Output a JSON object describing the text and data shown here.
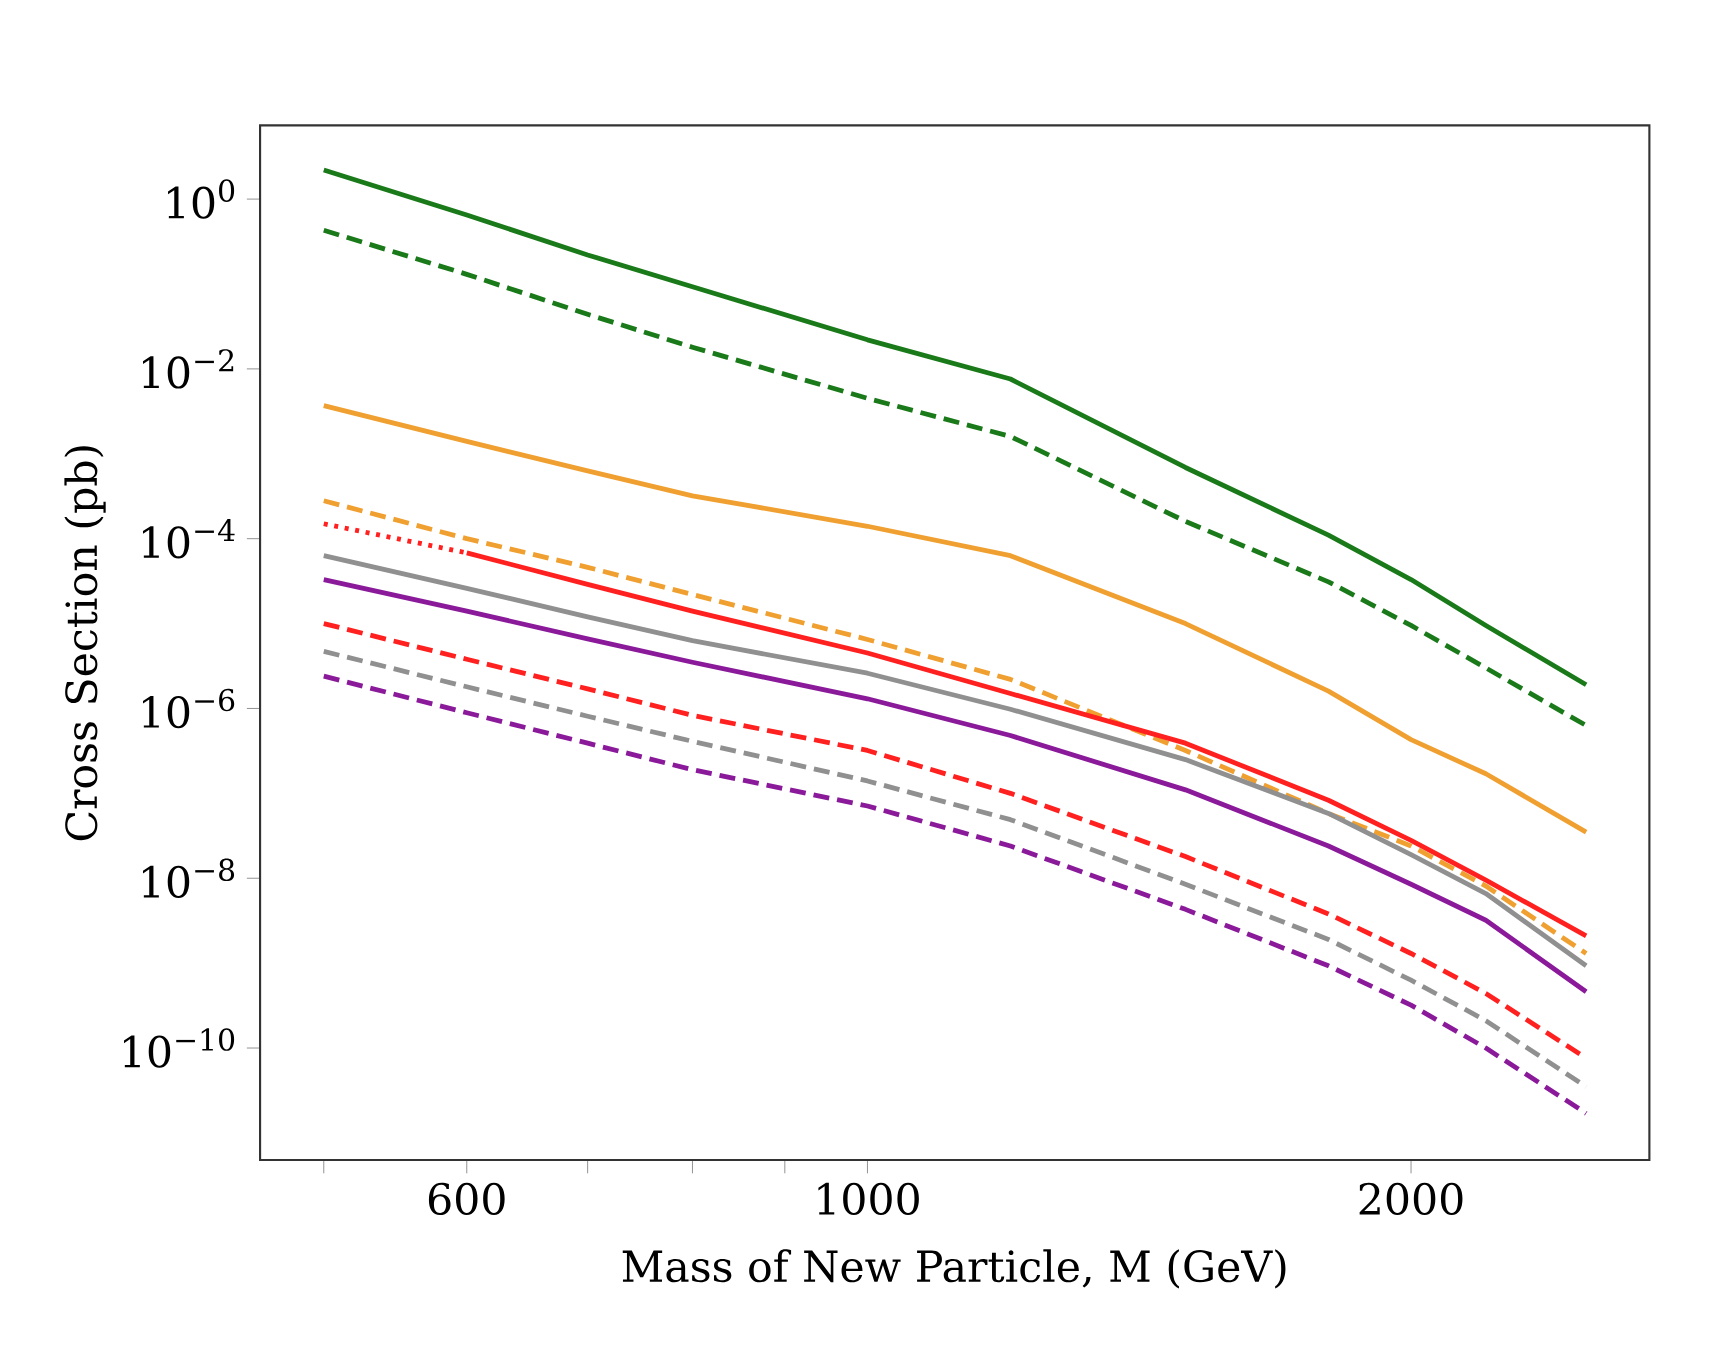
{
  "chart_data": {
    "type": "line",
    "xlabel": "Mass of New Particle, M (GeV)",
    "ylabel": "Cross Section (pb)",
    "log": "xy",
    "grid": false,
    "marker": "none",
    "x": [
      500,
      600,
      700,
      800,
      1000,
      1200,
      1500,
      1800,
      2000,
      2200,
      2500
    ],
    "xlim": [
      461,
      2710
    ],
    "ylim": [
      4.8e-12,
      7.4
    ],
    "xticks": [
      {
        "value": 500,
        "label": null
      },
      600,
      {
        "value": 700,
        "label": null
      },
      {
        "value": 800,
        "label": null
      },
      {
        "value": 900,
        "label": null
      },
      1000,
      2000
    ],
    "yticks": [
      {
        "value": 1,
        "label": "10$^{0}$"
      },
      {
        "value": 0.01,
        "label": "10$^{−2}$"
      },
      {
        "value": 0.0001,
        "label": "10$^{−4}$"
      },
      {
        "value": 1e-06,
        "label": "10$^{−6}$"
      },
      {
        "value": 1e-08,
        "label": "10$^{−8}$"
      },
      {
        "value": 1e-10,
        "label": "10$^{−10}$"
      }
    ],
    "series": [
      {
        "color": "#1a7a1a",
        "line_style": "solid",
        "values": [
          2.2,
          0.65,
          0.22,
          0.093,
          0.022,
          0.0076,
          0.00069,
          0.00011,
          3.3e-05,
          9.5e-06,
          1.9e-06
        ]
      },
      {
        "color": "#1a7a1a",
        "line_style": "dashed",
        "values": [
          0.43,
          0.13,
          0.044,
          0.018,
          0.0045,
          0.0016,
          0.00016,
          3.1e-05,
          9.5e-06,
          3e-06,
          6.3e-07
        ]
      },
      {
        "color": "#f0a030",
        "line_style": "solid",
        "values": [
          0.0037,
          0.0014,
          0.00063,
          0.00032,
          0.00014,
          6.3e-05,
          1e-05,
          1.6e-06,
          4.3e-07,
          1.7e-07,
          3.5e-08
        ]
      },
      {
        "color": "#f0a030",
        "line_style": "dashed",
        "values": [
          0.00028,
          0.0001,
          4.6e-05,
          2.2e-05,
          6.5e-06,
          2.2e-06,
          3.2e-07,
          5.8e-08,
          2.4e-08,
          8.1e-09,
          1.3e-09
        ]
      },
      {
        "color": "#ff2020",
        "line_style": "dotted",
        "x": [
          500,
          600
        ],
        "values": [
          0.00015,
          6.8e-05
        ]
      },
      {
        "color": "#ff2020",
        "line_style": "solid",
        "x": [
          600,
          700,
          800,
          1000,
          1200,
          1500,
          1800,
          2000,
          2200,
          2500
        ],
        "values": [
          6.8e-05,
          2.9e-05,
          1.4e-05,
          4.5e-06,
          1.5e-06,
          3.9e-07,
          8.3e-08,
          2.8e-08,
          9.5e-09,
          2.1e-09
        ]
      },
      {
        "color": "#909090",
        "line_style": "solid",
        "values": [
          6.3e-05,
          2.6e-05,
          1.2e-05,
          6.3e-06,
          2.6e-06,
          9.8e-07,
          2.5e-07,
          5.8e-08,
          1.9e-08,
          6.6e-09,
          9.3e-10
        ]
      },
      {
        "color": "#8a1a9a",
        "line_style": "solid",
        "values": [
          3.3e-05,
          1.4e-05,
          6.6e-06,
          3.5e-06,
          1.3e-06,
          4.8e-07,
          1.1e-07,
          2.4e-08,
          8.5e-09,
          3.2e-09,
          4.6e-10
        ]
      },
      {
        "color": "#ff2020",
        "line_style": "dashed",
        "values": [
          1e-05,
          3.8e-06,
          1.7e-06,
          8.3e-07,
          3.2e-07,
          1e-07,
          1.8e-08,
          3.8e-09,
          1.3e-09,
          4.4e-10,
          7.6e-11
        ]
      },
      {
        "color": "#909090",
        "line_style": "dashed",
        "values": [
          4.7e-06,
          1.8e-06,
          8.1e-07,
          4.1e-07,
          1.4e-07,
          4.9e-08,
          8.5e-09,
          1.9e-09,
          6.3e-10,
          2.1e-10,
          3.5e-11
        ]
      },
      {
        "color": "#8a1a9a",
        "line_style": "dashed",
        "values": [
          2.4e-06,
          8.9e-07,
          3.9e-07,
          1.9e-07,
          7.1e-08,
          2.4e-08,
          4.3e-09,
          9.3e-10,
          3.2e-10,
          1e-10,
          1.7e-11
        ]
      }
    ]
  }
}
